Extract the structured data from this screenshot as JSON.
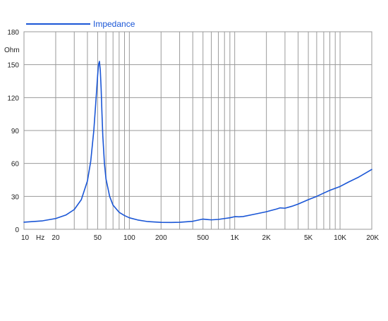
{
  "chart_data": {
    "type": "line",
    "title": "",
    "xlabel": "",
    "ylabel": "",
    "x_scale": "log",
    "xlim": [
      10,
      20000
    ],
    "ylim": [
      0,
      180
    ],
    "grid": true,
    "legend_position": "top-left",
    "x_unit_label": "Hz",
    "y_unit_label": "Ohm",
    "x_ticks": [
      {
        "value": 10,
        "label": "10"
      },
      {
        "value": 20,
        "label": "20"
      },
      {
        "value": 50,
        "label": "50"
      },
      {
        "value": 100,
        "label": "100"
      },
      {
        "value": 200,
        "label": "200"
      },
      {
        "value": 500,
        "label": "500"
      },
      {
        "value": 1000,
        "label": "1K"
      },
      {
        "value": 2000,
        "label": "2K"
      },
      {
        "value": 5000,
        "label": "5K"
      },
      {
        "value": 10000,
        "label": "10K"
      },
      {
        "value": 20000,
        "label": "20K"
      }
    ],
    "y_ticks": [
      0,
      30,
      60,
      90,
      120,
      150,
      180
    ],
    "x_gridlines": [
      20,
      30,
      40,
      50,
      60,
      70,
      80,
      90,
      100,
      200,
      300,
      400,
      500,
      600,
      700,
      800,
      900,
      1000,
      2000,
      3000,
      4000,
      5000,
      6000,
      7000,
      8000,
      9000,
      10000,
      20000
    ],
    "series": [
      {
        "name": "Impedance",
        "color": "#1a56d6",
        "x": [
          10,
          15,
          20,
          25,
          30,
          35,
          40,
          43,
          46,
          48,
          50,
          51,
          52,
          53,
          54,
          55,
          56,
          58,
          60,
          65,
          70,
          80,
          90,
          100,
          120,
          150,
          200,
          250,
          300,
          400,
          500,
          550,
          600,
          700,
          800,
          900,
          1000,
          1100,
          1200,
          1500,
          2000,
          2500,
          2700,
          3000,
          3500,
          4000,
          5000,
          6000,
          7000,
          8000,
          10000,
          12000,
          15000,
          20000
        ],
        "values": [
          6.5,
          7.7,
          9.8,
          13,
          18,
          27,
          44,
          62,
          90,
          115,
          140,
          150,
          153,
          145,
          128,
          105,
          85,
          60,
          46,
          30,
          22,
          15.5,
          12.5,
          10.5,
          8.5,
          7,
          6.3,
          6.2,
          6.4,
          7.3,
          9.3,
          8.9,
          8.6,
          9,
          9.8,
          10.5,
          11.5,
          11.4,
          11.6,
          13.5,
          16,
          18.5,
          19.5,
          19.2,
          21,
          23,
          27,
          30,
          33,
          35.5,
          39,
          43,
          47.5,
          54.5
        ]
      }
    ]
  }
}
